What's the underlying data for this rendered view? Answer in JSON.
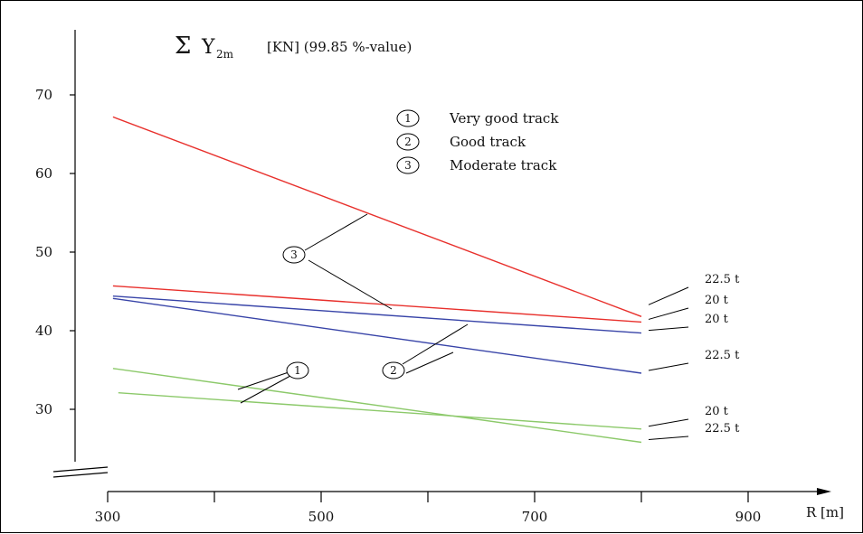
{
  "chart_data": {
    "type": "line",
    "title": {
      "symbol": "Σ",
      "variable": "Y",
      "subscript": "2m",
      "unit": "[KN] (99.85 %-value)"
    },
    "xlabel": "R [m]",
    "ylabel": "",
    "xlim": [
      300,
      970
    ],
    "ylim": [
      26.5,
      73
    ],
    "xticks": [
      300,
      400,
      500,
      600,
      700,
      800,
      900
    ],
    "xtick_labels": [
      "300",
      "",
      "500",
      "",
      "700",
      "",
      "900"
    ],
    "yticks": [
      30,
      40,
      50,
      60,
      70
    ],
    "ytick_labels": [
      "30",
      "40",
      "50",
      "60",
      "70"
    ],
    "grid": false,
    "legend": {
      "placement": "top-center",
      "items": [
        {
          "marker": "1",
          "label": "Very good track"
        },
        {
          "marker": "2",
          "label": "Good track"
        },
        {
          "marker": "3",
          "label": "Moderate track"
        }
      ]
    },
    "colors": {
      "1": "#8cc96a",
      "2": "#3844a8",
      "3": "#e8302c"
    },
    "series": [
      {
        "track": "3",
        "end_label": "22.5 t",
        "x": [
          305,
          800
        ],
        "y": [
          67.2,
          41.8
        ]
      },
      {
        "track": "3",
        "end_label": "20 t",
        "x": [
          305,
          800
        ],
        "y": [
          45.7,
          41.1
        ]
      },
      {
        "track": "2",
        "end_label": "20 t",
        "x": [
          305,
          800
        ],
        "y": [
          44.4,
          39.7
        ]
      },
      {
        "track": "2",
        "end_label": "22.5 t",
        "x": [
          305,
          800
        ],
        "y": [
          44.1,
          34.6
        ]
      },
      {
        "track": "1",
        "end_label": "20 t",
        "x": [
          310,
          800
        ],
        "y": [
          32.1,
          27.5
        ]
      },
      {
        "track": "1",
        "end_label": "22.5 t",
        "x": [
          305,
          800
        ],
        "y": [
          35.2,
          25.8
        ]
      }
    ]
  }
}
